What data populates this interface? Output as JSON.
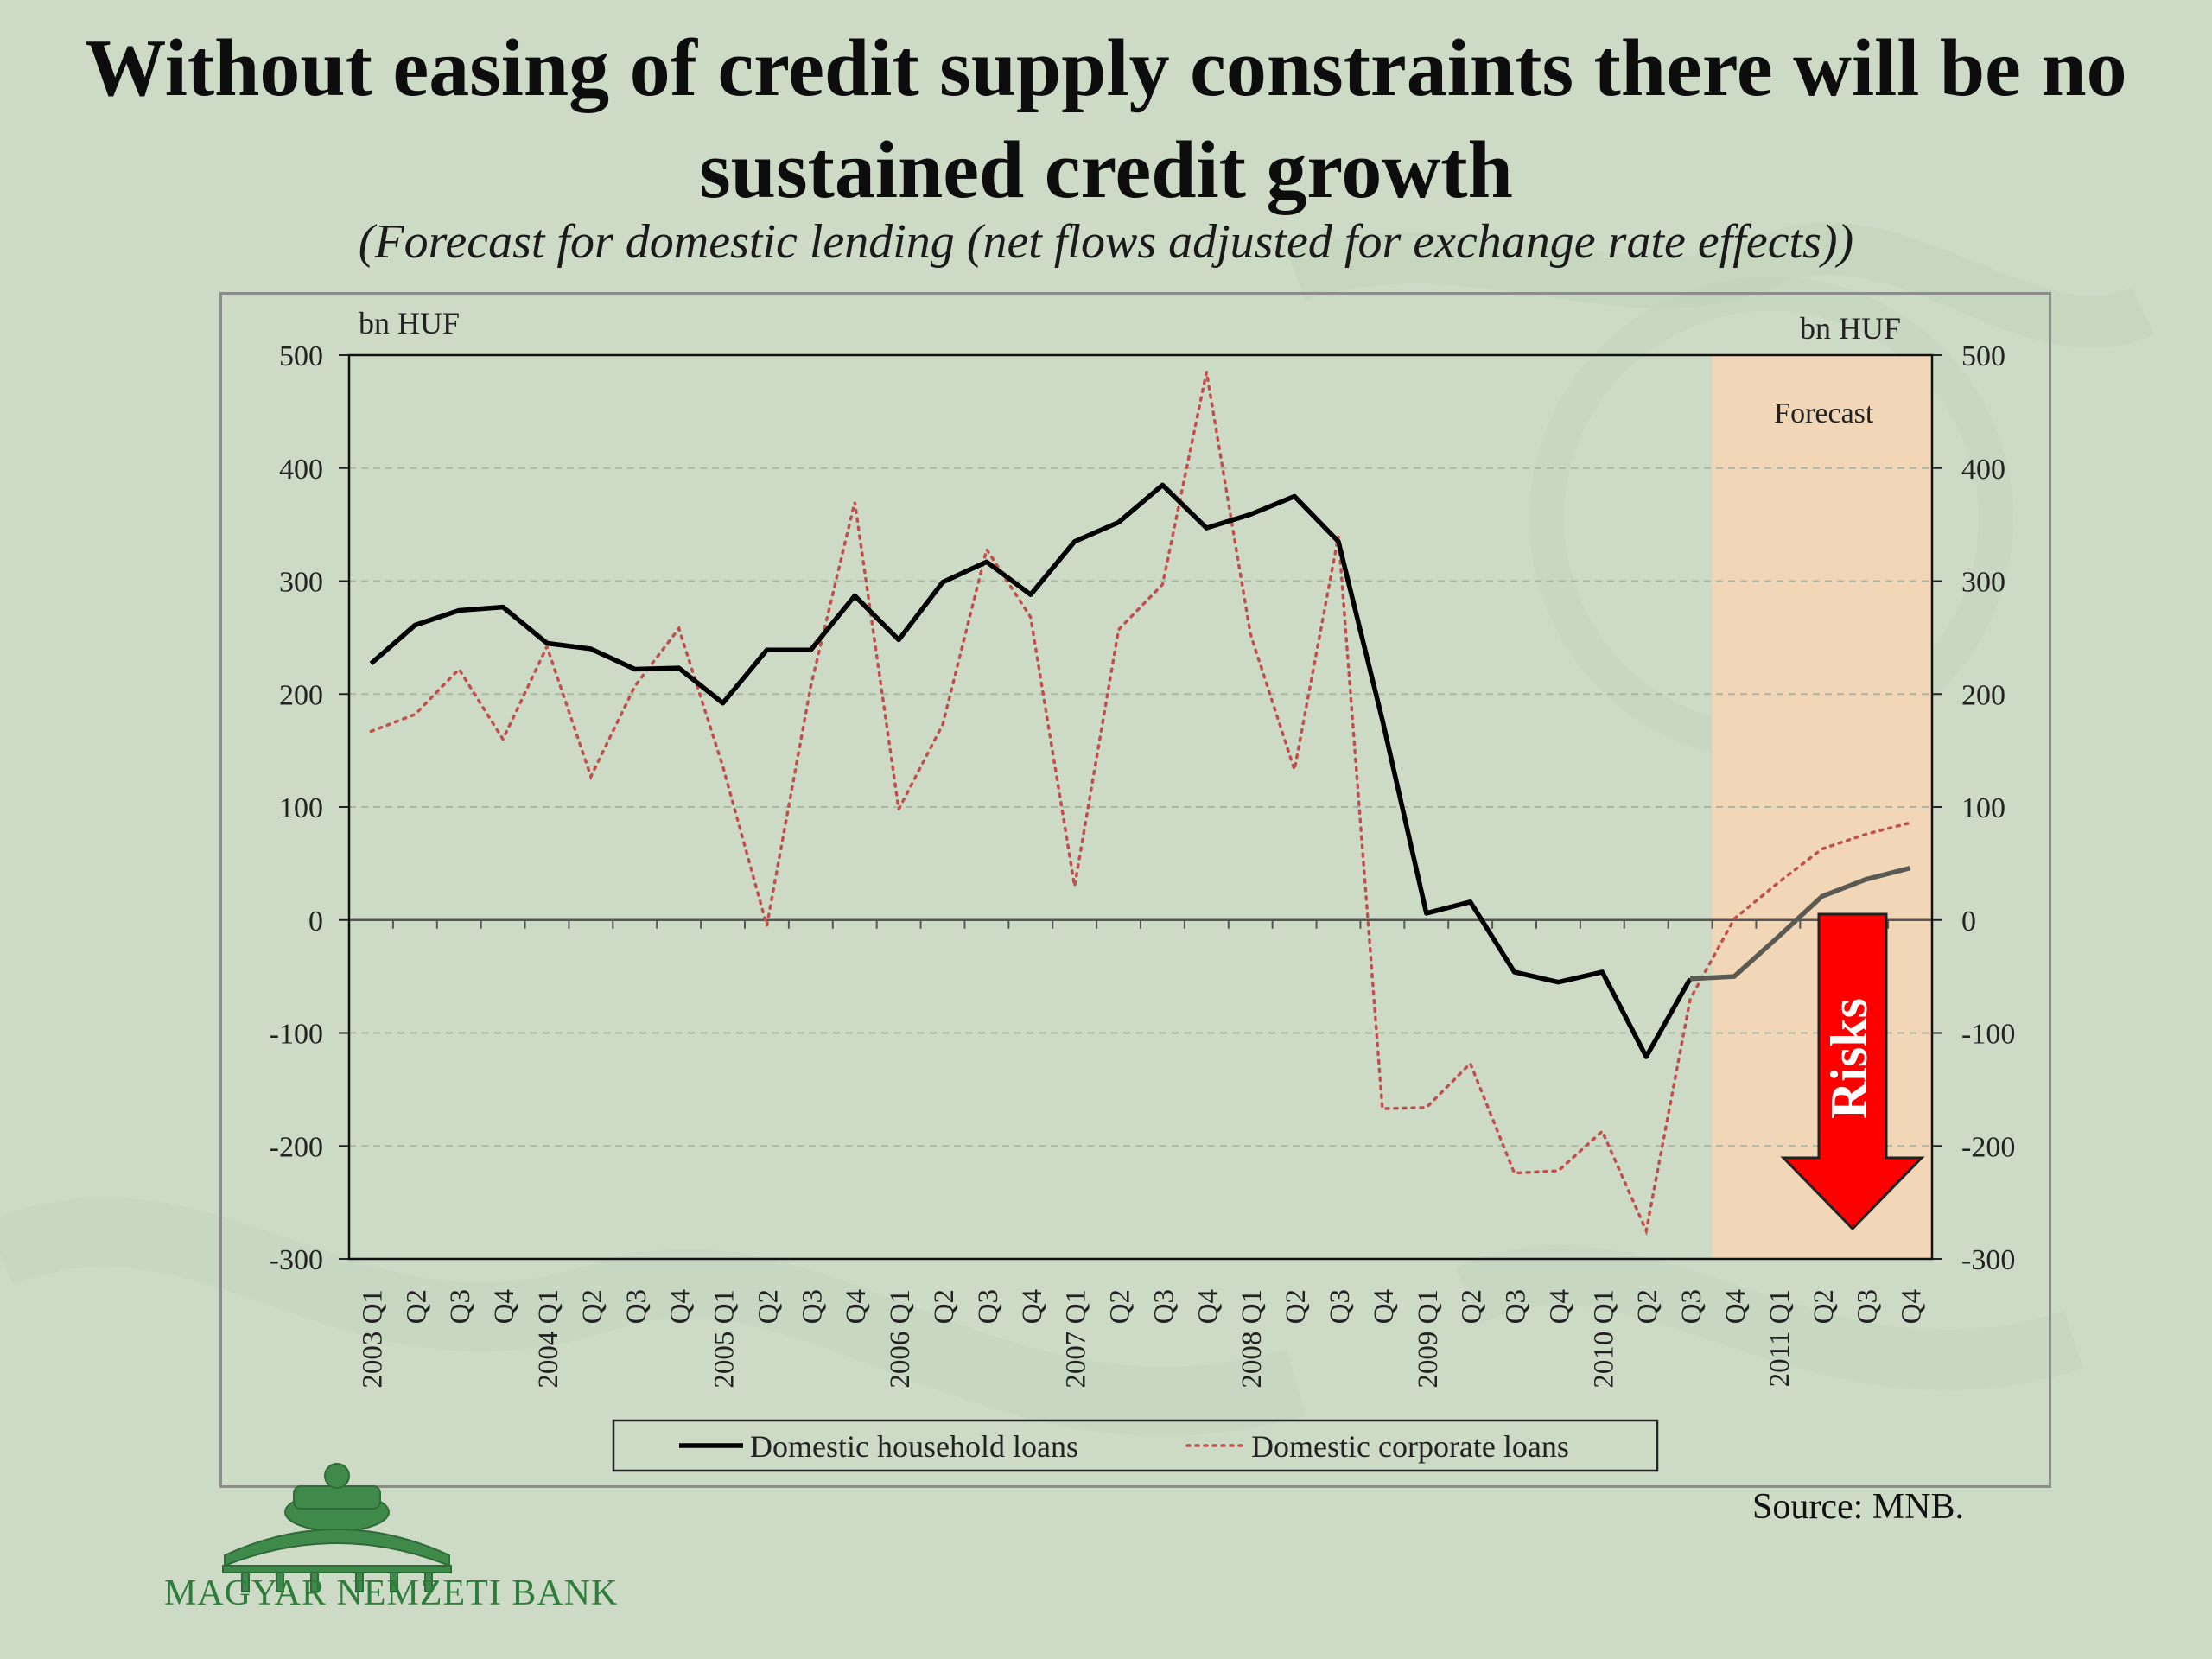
{
  "slide": {
    "title_line1": "Without easing of credit supply constraints there will be no",
    "title_line2": "sustained credit growth",
    "subtitle": "(Forecast for domestic lending (net flows adjusted for exchange rate effects))",
    "source": "Source: MNB.",
    "logo_text": "MAGYAR NEMZETI BANK"
  },
  "colors": {
    "household": "#000000",
    "household_forecast": "#5a5a52",
    "corporate": "#c0504d",
    "forecast_band": "#f1d6b8",
    "risk_arrow": "#ff0000"
  },
  "chart_data": {
    "type": "line",
    "title": "",
    "ylabel_left": "bn HUF",
    "ylabel_right": "bn HUF",
    "ylim": [
      -300,
      500
    ],
    "yticks": [
      -300,
      -200,
      -100,
      0,
      100,
      200,
      300,
      400,
      500
    ],
    "grid": "horizontal dashed",
    "legend_position": "bottom",
    "forecast_label": "Forecast",
    "forecast_start_index": 31,
    "risk_label": "Risks",
    "quarter_labels": [
      "2003 Q1",
      "Q2",
      "Q3",
      "Q4",
      "2004 Q1",
      "Q2",
      "Q3",
      "Q4",
      "2005 Q1",
      "Q2",
      "Q3",
      "Q4",
      "2006 Q1",
      "Q2",
      "Q3",
      "Q4",
      "2007 Q1",
      "Q2",
      "Q3",
      "Q4",
      "2008 Q1",
      "Q2",
      "Q3",
      "Q4",
      "2009 Q1",
      "Q2",
      "Q3",
      "Q4",
      "2010 Q1",
      "Q2",
      "Q3",
      "Q4",
      "2011 Q1",
      "Q2",
      "Q3",
      "Q4"
    ],
    "series": [
      {
        "name": "Domestic household loans",
        "style": "solid",
        "values": [
          227,
          261,
          274,
          277,
          245,
          240,
          222,
          223,
          192,
          239,
          239,
          287,
          248,
          299,
          317,
          288,
          335,
          352,
          385,
          347,
          359,
          375,
          335,
          177,
          6,
          16,
          -46,
          -55,
          -46,
          -121,
          -52,
          -50,
          -15,
          21,
          36,
          46
        ]
      },
      {
        "name": "Domestic corporate loans",
        "style": "dotted",
        "values": [
          167,
          182,
          222,
          160,
          242,
          127,
          207,
          258,
          136,
          -5,
          207,
          370,
          98,
          173,
          328,
          268,
          30,
          257,
          297,
          485,
          253,
          133,
          340,
          -167,
          -166,
          -127,
          -224,
          -222,
          -187,
          -275,
          -70,
          1,
          33,
          63,
          76,
          86
        ]
      }
    ]
  }
}
